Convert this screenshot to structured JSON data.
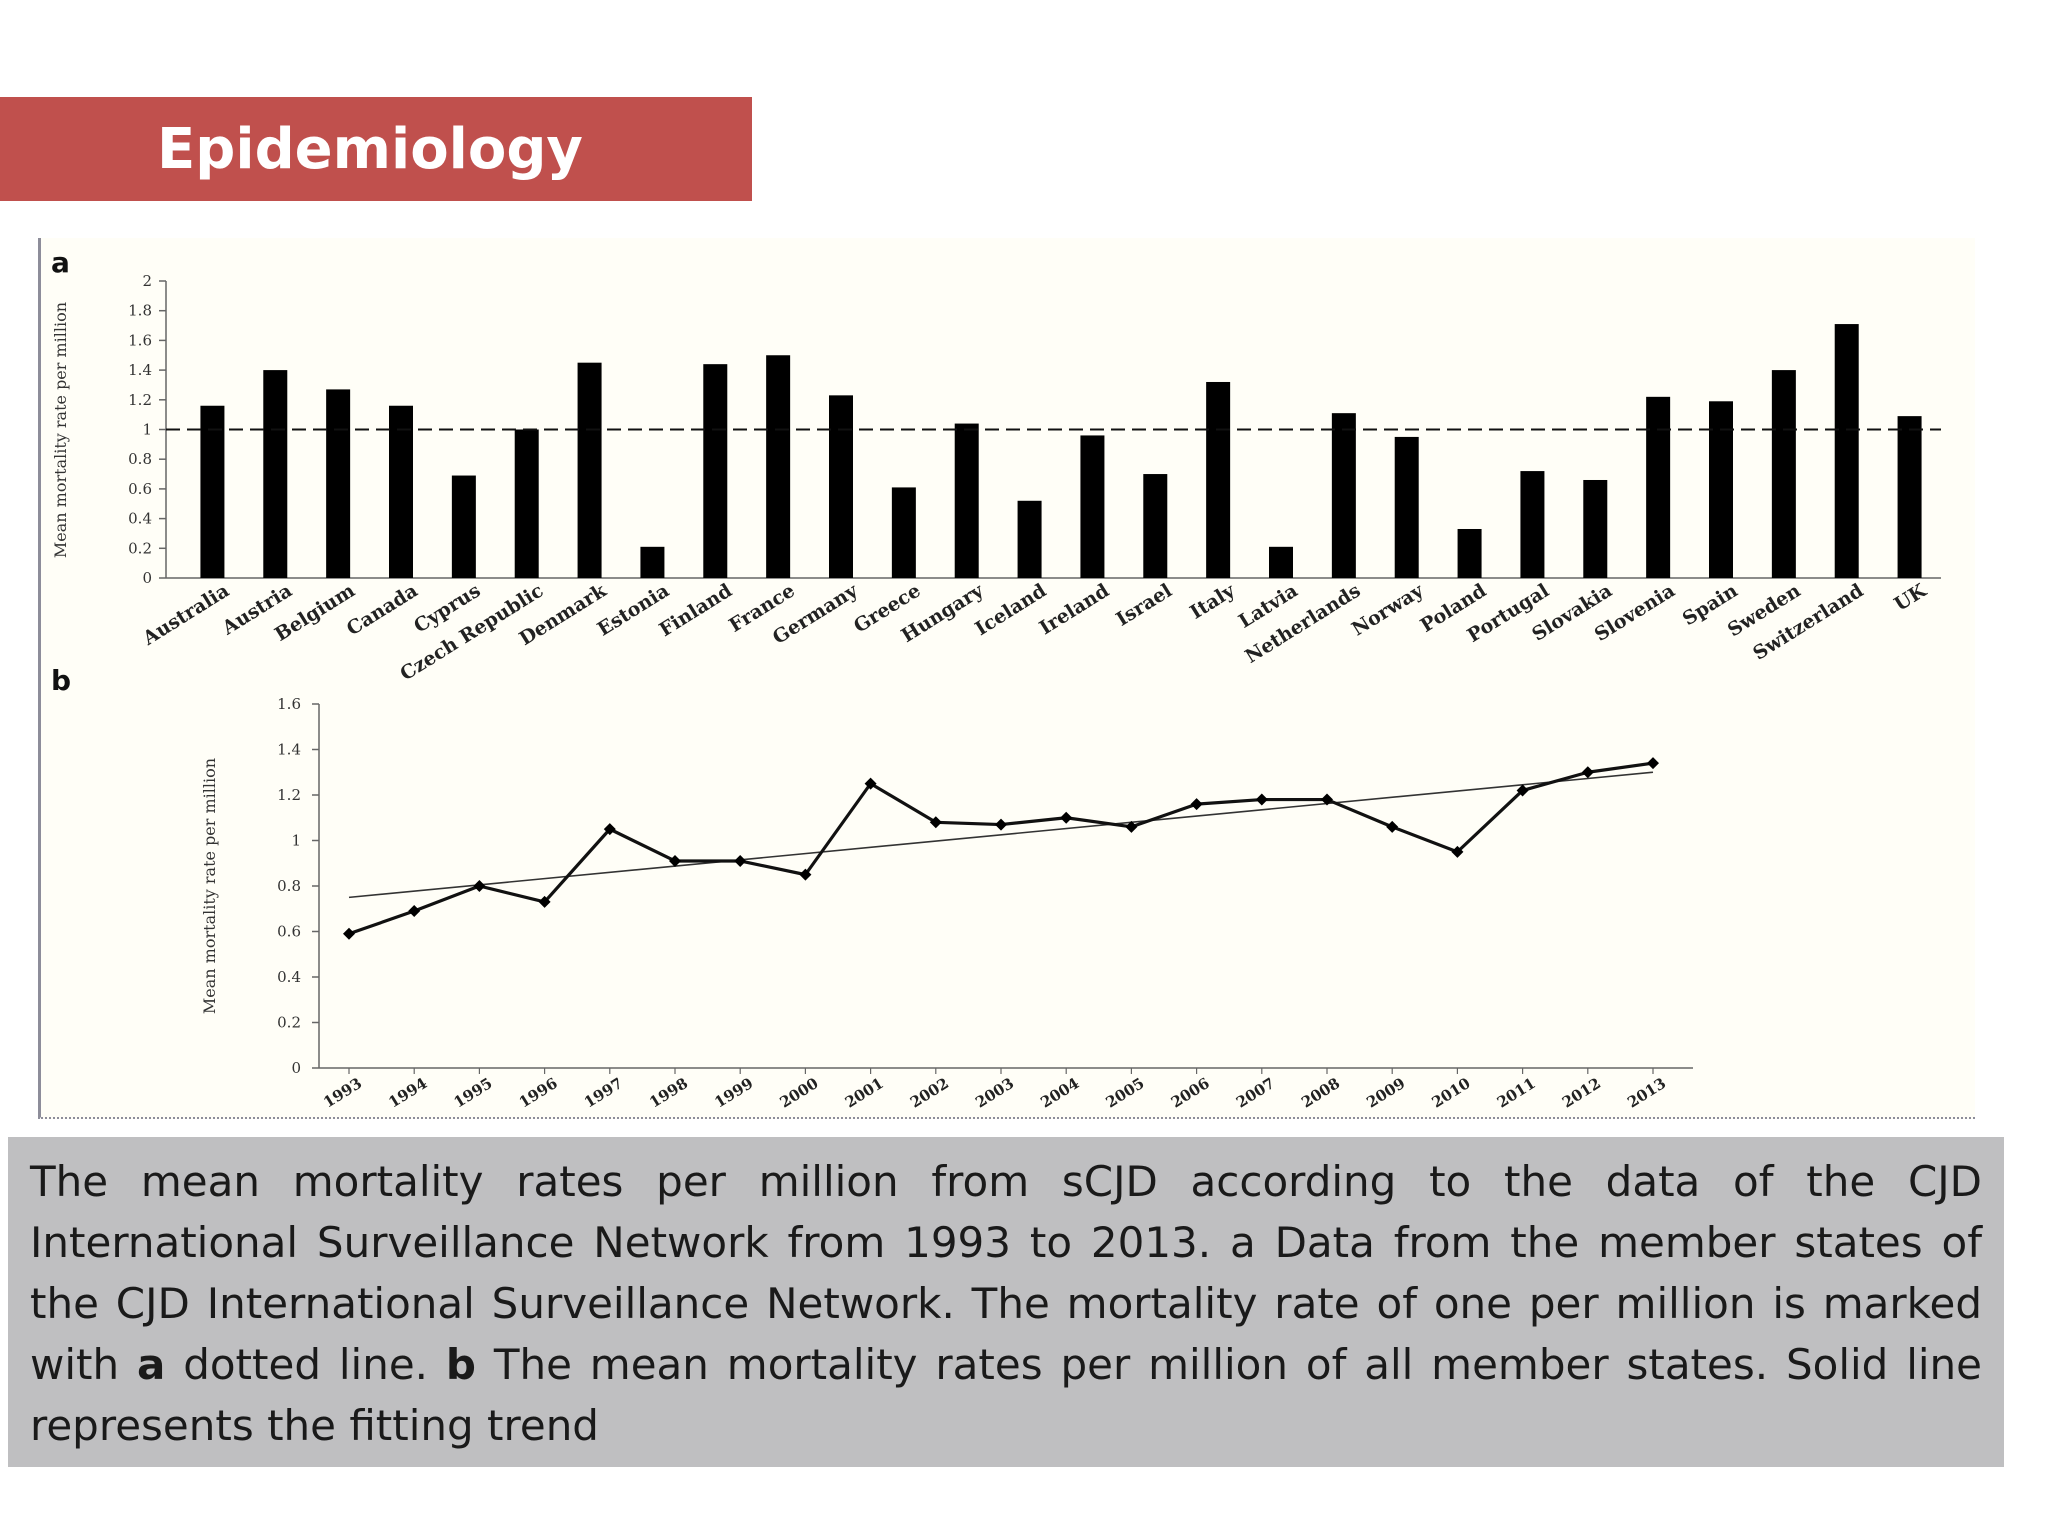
{
  "slide": {
    "title": "Epidemiology",
    "caption": {
      "part1": "The mean mortality rates per million from sCJD according to the data of the CJD International Surveillance Network from 1993 to 2013. a Data from the member states of the CJD International Surveillance Network. The mortality rate of one per million is marked with ",
      "bold1": "a",
      "part2": " dotted line. ",
      "bold2": "b",
      "part3": " The mean mortality rates per million of all member states. Solid line represents the fitting trend"
    }
  },
  "colors": {
    "banner": "#c0504d",
    "caption_bg": "#bfbfc1",
    "bars": "#000000"
  },
  "chart_data": [
    {
      "panel_label": "a",
      "type": "bar",
      "ylabel": "Mean mortality rate per million",
      "ylim": [
        0,
        2
      ],
      "yticks": [
        "0",
        "0.2",
        "0.4",
        "0.6",
        "0.8",
        "1",
        "1.2",
        "1.4",
        "1.6",
        "1.8",
        "2"
      ],
      "reference_line": 1,
      "categories": [
        "Australia",
        "Austria",
        "Belgium",
        "Canada",
        "Cyprus",
        "Czech Republic",
        "Denmark",
        "Estonia",
        "Finland",
        "France",
        "Germany",
        "Greece",
        "Hungary",
        "Iceland",
        "Ireland",
        "Israel",
        "Italy",
        "Latvia",
        "Netherlands",
        "Norway",
        "Poland",
        "Portugal",
        "Slovakia",
        "Slovenia",
        "Spain",
        "Sweden",
        "Switzerland",
        "UK"
      ],
      "values": [
        1.16,
        1.4,
        1.27,
        1.16,
        0.69,
        1.0,
        1.45,
        0.21,
        1.44,
        1.5,
        1.23,
        0.61,
        1.04,
        0.52,
        0.96,
        0.7,
        1.32,
        0.21,
        1.11,
        0.95,
        0.33,
        0.72,
        0.66,
        1.22,
        1.19,
        1.4,
        1.71,
        1.09
      ]
    },
    {
      "panel_label": "b",
      "type": "line",
      "ylabel": "Mean mortality rate per million",
      "ylim": [
        0,
        1.6
      ],
      "yticks": [
        "0",
        "0.2",
        "0.4",
        "0.6",
        "0.8",
        "1",
        "1.2",
        "1.4",
        "1.6"
      ],
      "x": [
        "1993",
        "1994",
        "1995",
        "1996",
        "1997",
        "1998",
        "1999",
        "2000",
        "2001",
        "2002",
        "2003",
        "2004",
        "2005",
        "2006",
        "2007",
        "2008",
        "2009",
        "2010",
        "2011",
        "2012",
        "2013"
      ],
      "values": [
        0.59,
        0.69,
        0.8,
        0.73,
        1.05,
        0.91,
        0.91,
        0.85,
        1.25,
        1.08,
        1.07,
        1.1,
        1.06,
        1.16,
        1.18,
        1.18,
        1.06,
        0.95,
        1.22,
        1.3,
        1.34
      ],
      "trend": {
        "start": 0.75,
        "end": 1.3
      }
    }
  ]
}
